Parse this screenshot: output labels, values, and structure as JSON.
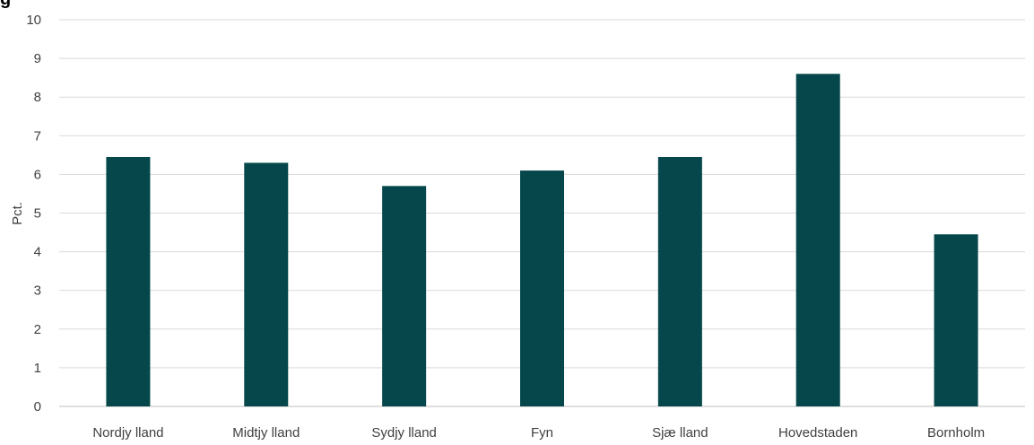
{
  "chart_data": {
    "type": "bar",
    "title": "",
    "xlabel": "",
    "ylabel": "Pct.",
    "ylim": [
      0,
      10
    ],
    "yticks": [
      "0",
      "1",
      "2",
      "3",
      "4",
      "5",
      "6",
      "7",
      "8",
      "9",
      "10"
    ],
    "categories": [
      "Nordjylland",
      "Midtjylland",
      "Sydjylland",
      "Fyn",
      "Sjælland",
      "Hovedstaden",
      "Bornholm"
    ],
    "category_labels": [
      "Nordjy lland",
      "Midtjy lland",
      "Sydjy lland",
      "Fyn",
      "Sjæ lland",
      "Hovedstaden",
      "Bornholm"
    ],
    "values": [
      6.45,
      6.3,
      5.7,
      6.1,
      6.45,
      8.6,
      4.45
    ],
    "grid": true,
    "legend": "none",
    "bar_color": "#05474a",
    "grid_color": "#d9d9d9",
    "axis_color": "#bfbfbf"
  }
}
